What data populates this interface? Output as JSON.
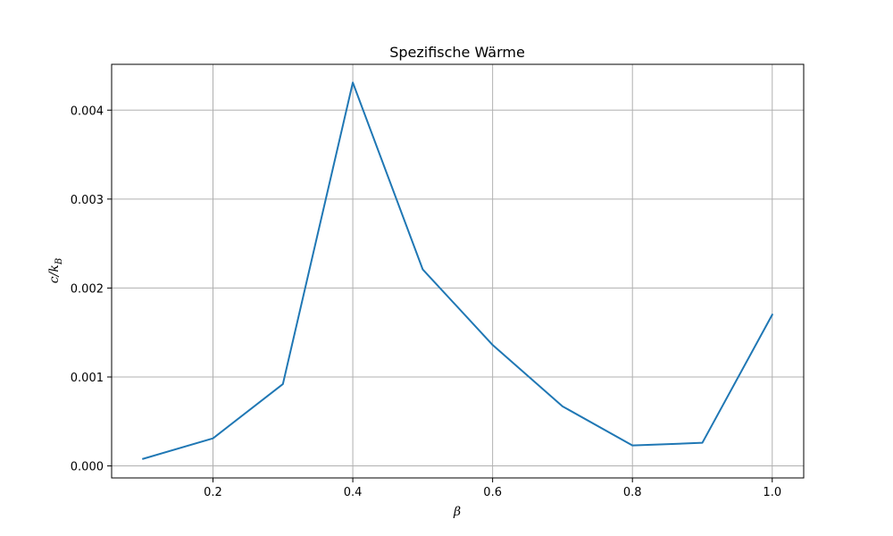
{
  "chart_data": {
    "type": "line",
    "title": "Spezifische Wärme",
    "xlabel": "β",
    "ylabel": "c/k_B",
    "ylabel_main": "c/k",
    "ylabel_sub": "B",
    "xlim": [
      0.055,
      1.045
    ],
    "ylim": [
      -0.000135,
      0.004515
    ],
    "xticks": [
      0.2,
      0.4,
      0.6,
      0.8,
      1.0
    ],
    "xtick_labels": [
      "0.2",
      "0.4",
      "0.6",
      "0.8",
      "1.0"
    ],
    "yticks": [
      0.0,
      0.001,
      0.002,
      0.003,
      0.004
    ],
    "ytick_labels": [
      "0.000",
      "0.001",
      "0.002",
      "0.003",
      "0.004"
    ],
    "grid": true,
    "series": [
      {
        "color": "#1f77b4",
        "x": [
          0.1,
          0.2,
          0.3,
          0.4,
          0.5,
          0.6,
          0.7,
          0.8,
          0.9,
          1.0
        ],
        "y": [
          8e-05,
          0.00031,
          0.00092,
          0.00431,
          0.00221,
          0.00136,
          0.00067,
          0.00023,
          0.00026,
          0.0017
        ]
      }
    ]
  }
}
